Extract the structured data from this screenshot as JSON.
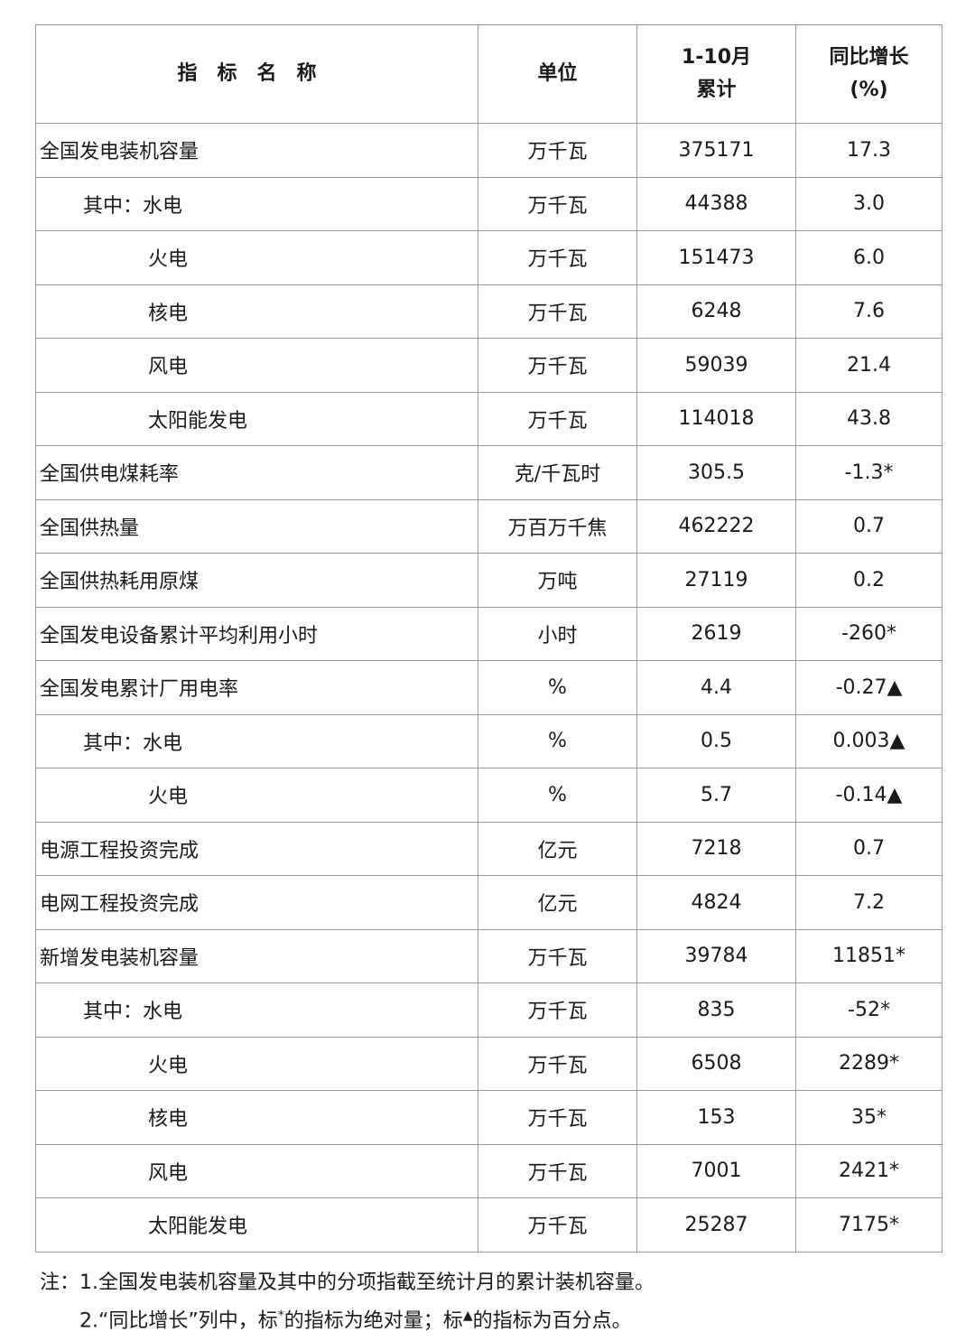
{
  "table": {
    "headers": {
      "name": "指标名称",
      "unit": "单位",
      "cumulative_line1": "1-10月",
      "cumulative_line2": "累计",
      "yoy_line1": "同比增长",
      "yoy_line2": "(%)"
    },
    "rows": [
      {
        "name": "全国发电装机容量",
        "level": 0,
        "unit": "万千瓦",
        "value": "375171",
        "yoy": "17.3"
      },
      {
        "name": "其中：水电",
        "level": 1,
        "unit": "万千瓦",
        "value": "44388",
        "yoy": "3.0"
      },
      {
        "name": "火电",
        "level": 2,
        "unit": "万千瓦",
        "value": "151473",
        "yoy": "6.0"
      },
      {
        "name": "核电",
        "level": 2,
        "unit": "万千瓦",
        "value": "6248",
        "yoy": "7.6"
      },
      {
        "name": "风电",
        "level": 2,
        "unit": "万千瓦",
        "value": "59039",
        "yoy": "21.4"
      },
      {
        "name": "太阳能发电",
        "level": 2,
        "unit": "万千瓦",
        "value": "114018",
        "yoy": "43.8"
      },
      {
        "name": "全国供电煤耗率",
        "level": 0,
        "unit": "克/千瓦时",
        "value": "305.5",
        "yoy": "-1.3*"
      },
      {
        "name": "全国供热量",
        "level": 0,
        "unit": "万百万千焦",
        "value": "462222",
        "yoy": "0.7"
      },
      {
        "name": "全国供热耗用原煤",
        "level": 0,
        "unit": "万吨",
        "value": "27119",
        "yoy": "0.2"
      },
      {
        "name": "全国发电设备累计平均利用小时",
        "level": 0,
        "unit": "小时",
        "value": "2619",
        "yoy": "-260*"
      },
      {
        "name": "全国发电累计厂用电率",
        "level": 0,
        "unit": "%",
        "value": "4.4",
        "yoy": "-0.27▲"
      },
      {
        "name": "其中：水电",
        "level": 1,
        "unit": "%",
        "value": "0.5",
        "yoy": "0.003▲"
      },
      {
        "name": "火电",
        "level": 2,
        "unit": "%",
        "value": "5.7",
        "yoy": "-0.14▲"
      },
      {
        "name": "电源工程投资完成",
        "level": 0,
        "unit": "亿元",
        "value": "7218",
        "yoy": "0.7"
      },
      {
        "name": "电网工程投资完成",
        "level": 0,
        "unit": "亿元",
        "value": "4824",
        "yoy": "7.2"
      },
      {
        "name": "新增发电装机容量",
        "level": 0,
        "unit": "万千瓦",
        "value": "39784",
        "yoy": "11851*"
      },
      {
        "name": "其中：水电",
        "level": 1,
        "unit": "万千瓦",
        "value": "835",
        "yoy": "-52*"
      },
      {
        "name": "火电",
        "level": 2,
        "unit": "万千瓦",
        "value": "6508",
        "yoy": "2289*"
      },
      {
        "name": "核电",
        "level": 2,
        "unit": "万千瓦",
        "value": "153",
        "yoy": "35*"
      },
      {
        "name": "风电",
        "level": 2,
        "unit": "万千瓦",
        "value": "7001",
        "yoy": "2421*"
      },
      {
        "name": "太阳能发电",
        "level": 2,
        "unit": "万千瓦",
        "value": "25287",
        "yoy": "7175*"
      }
    ]
  },
  "notes": {
    "line1": "注：1.全国发电装机容量及其中的分项指截至统计月的累计装机容量。",
    "line2_a": "2.“同比增长”列中，标",
    "star": "*",
    "line2_b": "的指标为绝对量；标",
    "triangle": "▲",
    "line2_c": "的指标为百分点。"
  }
}
